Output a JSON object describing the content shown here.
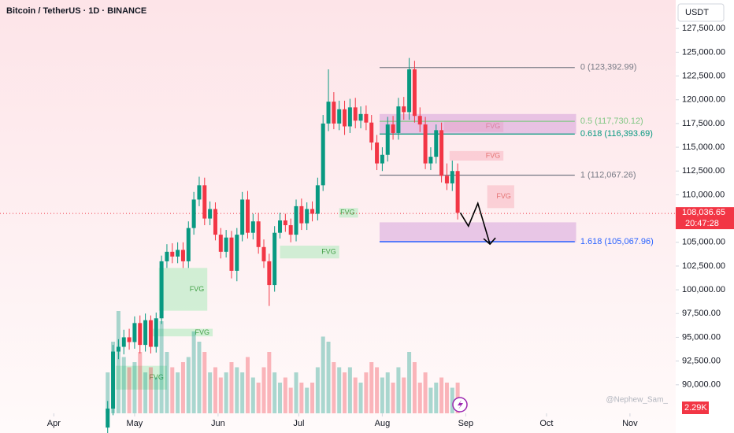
{
  "chart_data": {
    "type": "candlestick",
    "title": "Bitcoin / TetherUS · 1D · BINANCE",
    "currency": "USDT",
    "watermark": "@Nephew_Sam_",
    "xlim": [
      71,
      322
    ],
    "ylim": [
      87000,
      130500
    ],
    "yticks": [
      {
        "value": 90000,
        "label": "90,000.00"
      },
      {
        "value": 92500,
        "label": "92,500.00"
      },
      {
        "value": 95000,
        "label": "95,000.00"
      },
      {
        "value": 97500,
        "label": "97,500.00"
      },
      {
        "value": 100000,
        "label": "100,000.00"
      },
      {
        "value": 102500,
        "label": "102,500.00"
      },
      {
        "value": 105000,
        "label": "105,000.00"
      },
      {
        "value": 107500,
        "label": "107,500.00"
      },
      {
        "value": 110000,
        "label": "110,000.00"
      },
      {
        "value": 112500,
        "label": "112,500.00"
      },
      {
        "value": 115000,
        "label": "115,000.00"
      },
      {
        "value": 117500,
        "label": "117,500.00"
      },
      {
        "value": 120000,
        "label": "120,000.00"
      },
      {
        "value": 122500,
        "label": "122,500.00"
      },
      {
        "value": 125000,
        "label": "125,000.00"
      },
      {
        "value": 127500,
        "label": "127,500.00"
      }
    ],
    "xticks": [
      {
        "value": 91,
        "label": "Apr"
      },
      {
        "value": 121,
        "label": "May"
      },
      {
        "value": 152,
        "label": "Jun"
      },
      {
        "value": 182,
        "label": "Jul"
      },
      {
        "value": 213,
        "label": "Aug"
      },
      {
        "value": 244,
        "label": "Sep"
      },
      {
        "value": 274,
        "label": "Oct"
      },
      {
        "value": 305,
        "label": "Nov"
      }
    ],
    "grid": false,
    "up_color": "#089981",
    "down_color": "#f23645",
    "series": [
      {
        "name": "BTCUSDT",
        "x": [
          111,
          113,
          115,
          117,
          119,
          121,
          123,
          125,
          127,
          129,
          131,
          133,
          135,
          137,
          139,
          141,
          143,
          145,
          147,
          149,
          151,
          153,
          155,
          157,
          159,
          161,
          163,
          165,
          167,
          169,
          171,
          173,
          175,
          177,
          179,
          181,
          183,
          185,
          187,
          189,
          191,
          193,
          195,
          197,
          199,
          201,
          203,
          205,
          207,
          209,
          211,
          213,
          215,
          217,
          219,
          221,
          223,
          225,
          227,
          229,
          231,
          233,
          235,
          237,
          239,
          241
        ],
        "open": [
          85500,
          87500,
          93500,
          94000,
          95000,
          94500,
          96500,
          94200,
          96800,
          94000,
          97000,
          103000,
          104000,
          103500,
          104200,
          103000,
          106500,
          109500,
          111000,
          107500,
          108500,
          105800,
          104000,
          105500,
          102000,
          105800,
          109500,
          106000,
          107200,
          104500,
          103000,
          100500,
          106000,
          107300,
          106800,
          105800,
          108800,
          107000,
          108500,
          108000,
          111000,
          117500,
          119800,
          117500,
          119000,
          117200,
          119200,
          117800,
          118500,
          117600,
          115500,
          113300,
          114200,
          117400,
          116500,
          119300,
          118700,
          123200,
          118300,
          117400,
          113300,
          114000,
          116800,
          112000,
          111200,
          112500
        ],
        "high": [
          88300,
          94200,
          94800,
          95800,
          95900,
          97200,
          97300,
          97500,
          97300,
          97600,
          103600,
          104800,
          104900,
          105000,
          105000,
          107200,
          110300,
          111900,
          111800,
          109300,
          109200,
          106500,
          106300,
          106200,
          106500,
          110300,
          110400,
          108000,
          108100,
          105300,
          103800,
          106700,
          108100,
          108000,
          107500,
          109500,
          109600,
          109200,
          109300,
          111800,
          118400,
          123200,
          120800,
          119900,
          119900,
          120100,
          120200,
          119300,
          119400,
          118400,
          116300,
          115000,
          118200,
          118300,
          120200,
          120300,
          124400,
          124100,
          119200,
          118200,
          115000,
          117400,
          117600,
          113300,
          113600,
          113300
        ],
        "low": [
          84500,
          86800,
          92700,
          93200,
          93700,
          93800,
          93300,
          93500,
          93300,
          93400,
          96400,
          102300,
          102800,
          102800,
          102300,
          102300,
          105800,
          108800,
          106800,
          106800,
          105200,
          103300,
          103400,
          101200,
          100900,
          105100,
          105400,
          105300,
          103800,
          102300,
          98300,
          99800,
          105400,
          106100,
          105000,
          105100,
          106300,
          106300,
          107200,
          107300,
          110400,
          116700,
          116900,
          116800,
          116300,
          116500,
          117000,
          117000,
          116800,
          114700,
          112600,
          112500,
          113500,
          115800,
          115800,
          117900,
          117900,
          117600,
          116600,
          112700,
          112600,
          113300,
          111300,
          110500,
          110400,
          107400
        ],
        "close": [
          87500,
          93500,
          94000,
          95000,
          94500,
          96500,
          94200,
          96800,
          94000,
          97000,
          103000,
          104000,
          103500,
          104200,
          103000,
          106500,
          109500,
          111000,
          107500,
          108500,
          105800,
          104000,
          105500,
          102000,
          105800,
          109500,
          106000,
          107200,
          104500,
          103000,
          100500,
          106000,
          107300,
          106800,
          105800,
          108800,
          107000,
          108500,
          108000,
          111000,
          117500,
          119800,
          117500,
          119000,
          117200,
          119200,
          117800,
          118500,
          117600,
          115500,
          113300,
          114200,
          117400,
          116500,
          119300,
          118700,
          123200,
          118300,
          117400,
          113300,
          114000,
          116800,
          112000,
          111200,
          112500,
          108100
        ],
        "volume": [
          8,
          14,
          20,
          11,
          9,
          10,
          12,
          8,
          9,
          7,
          18,
          12,
          9,
          8,
          10,
          11,
          16,
          14,
          12,
          8,
          9,
          7,
          8,
          10,
          9,
          8,
          11,
          7,
          6,
          9,
          12,
          8,
          6,
          7,
          5,
          8,
          6,
          5,
          6,
          9,
          15,
          14,
          10,
          9,
          8,
          9,
          7,
          6,
          8,
          10,
          9,
          7,
          8,
          6,
          9,
          7,
          12,
          10,
          6,
          8,
          5,
          6,
          7,
          6,
          5,
          6
        ]
      }
    ],
    "current_price": {
      "value": 108036.65,
      "label": "108,036.65"
    },
    "countdown": "20:47:28",
    "current_volume": {
      "value": 2.29,
      "label": "2.29K"
    },
    "fib": {
      "x": [
        212,
        284.5
      ],
      "levels": [
        {
          "ratio": 0,
          "value": 123392.99,
          "label": "0 (123,392.99)",
          "color": "#787b86"
        },
        {
          "ratio": 0.5,
          "value": 117730.12,
          "label": "0.5 (117,730.12)",
          "color": "#81c784"
        },
        {
          "ratio": 0.618,
          "value": 116393.69,
          "label": "0.618 (116,393.69)",
          "color": "#089981"
        },
        {
          "ratio": 1,
          "value": 112067.26,
          "label": "1 (112,067.26)",
          "color": "#787b86"
        },
        {
          "ratio": 1.618,
          "value": 105067.96,
          "label": "1.618 (105,067.96)",
          "color": "#2962ff"
        }
      ]
    },
    "zones": [
      {
        "x": [
          212,
          285
        ],
        "y": [
          116400,
          118500
        ],
        "color": "#ce93d8"
      },
      {
        "x": [
          212,
          285
        ],
        "y": [
          105000,
          107100
        ],
        "color": "#ce93d8"
      }
    ],
    "fvg": [
      {
        "label": "FVG",
        "x": [
          197,
          204
        ],
        "y": [
          107600,
          108600
        ],
        "color": "#b2ebc0"
      },
      {
        "label": "FVG",
        "x": [
          175,
          197
        ],
        "y": [
          103300,
          104650
        ],
        "color": "#b2ebc0"
      },
      {
        "label": "FVG",
        "x": [
          130,
          148
        ],
        "y": [
          97800,
          102300
        ],
        "color": "#b2ebc0"
      },
      {
        "label": "FVG",
        "x": [
          127,
          150
        ],
        "y": [
          95100,
          95900
        ],
        "color": "#b2ebc0"
      },
      {
        "label": "FVG",
        "x": [
          114,
          133
        ],
        "y": [
          89500,
          92000
        ],
        "color": "#b2ebc0"
      },
      {
        "label": "FVG",
        "x": [
          236,
          258
        ],
        "y": [
          116600,
          117800
        ],
        "color": "#f8bbc4"
      },
      {
        "label": "FVG",
        "x": [
          238,
          258
        ],
        "y": [
          113600,
          114600
        ],
        "color": "#f8bbc4"
      },
      {
        "label": "FVG",
        "x": [
          252,
          262
        ],
        "y": [
          108600,
          111000
        ],
        "color": "#f8bbc4"
      }
    ],
    "projection": {
      "x": [
        242,
        245,
        248.5,
        253
      ],
      "y": [
        108100,
        106700,
        109100,
        104800
      ]
    }
  }
}
